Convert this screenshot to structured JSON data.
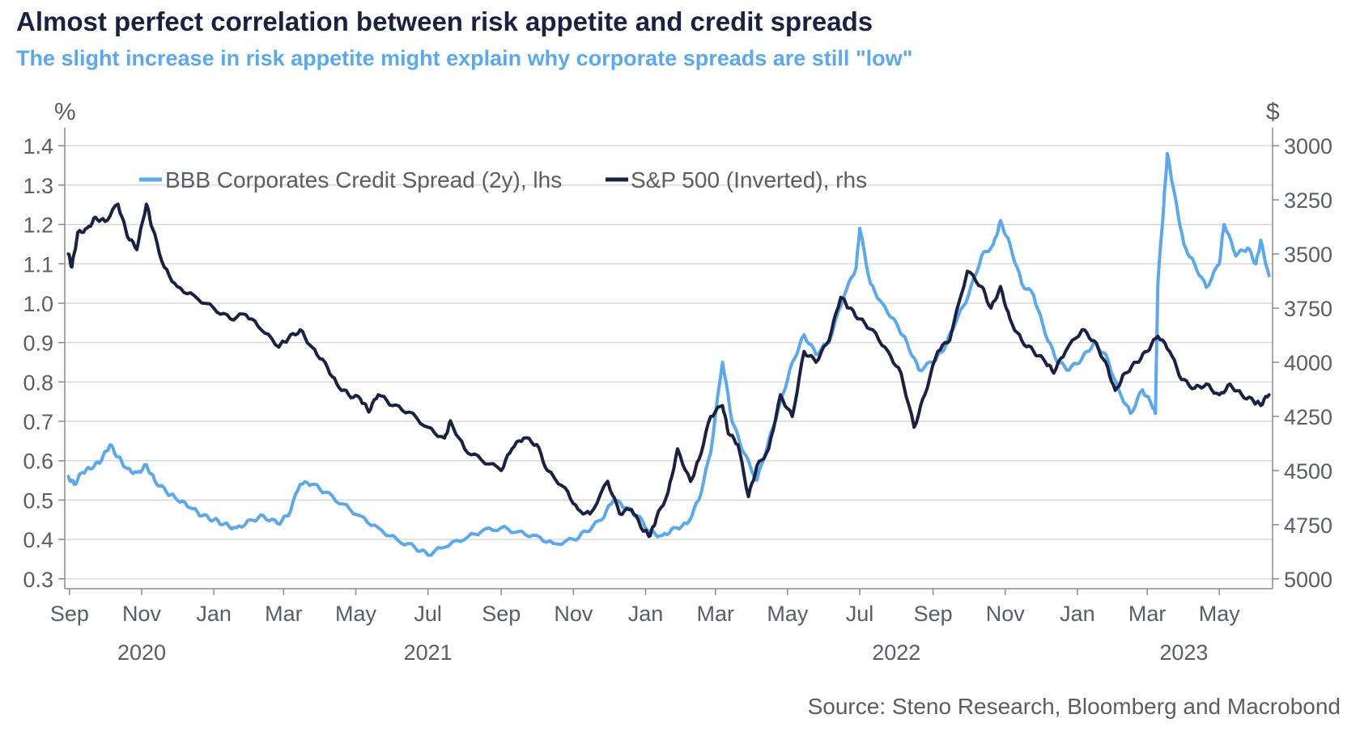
{
  "title": "Almost perfect correlation between risk appetite and credit spreads",
  "subtitle": "The slight increase in risk appetite might explain why corporate spreads are still \"low\"",
  "source": "Source: Steno Research, Bloomberg and Macrobond",
  "colors": {
    "spread": "#5aa9ee",
    "spx": "#1b2140",
    "grid": "#d9d9d9",
    "axis": "#8c8c8c",
    "text": "#595d66"
  },
  "chart_data": {
    "type": "line",
    "title": "Almost perfect correlation between risk appetite and credit spreads",
    "subtitle": "The slight increase in risk appetite might explain why corporate spreads are still \"low\"",
    "x_axis": {
      "type": "date",
      "range": [
        "2020-08-28",
        "2023-06-15"
      ],
      "month_ticks": [
        {
          "date": "2020-09-01",
          "label": "Sep"
        },
        {
          "date": "2020-11-01",
          "label": "Nov"
        },
        {
          "date": "2021-01-01",
          "label": "Jan"
        },
        {
          "date": "2021-03-01",
          "label": "Mar"
        },
        {
          "date": "2021-05-01",
          "label": "May"
        },
        {
          "date": "2021-07-01",
          "label": "Jul"
        },
        {
          "date": "2021-09-01",
          "label": "Sep"
        },
        {
          "date": "2021-11-01",
          "label": "Nov"
        },
        {
          "date": "2022-01-01",
          "label": "Jan"
        },
        {
          "date": "2022-03-01",
          "label": "Mar"
        },
        {
          "date": "2022-05-01",
          "label": "May"
        },
        {
          "date": "2022-07-01",
          "label": "Jul"
        },
        {
          "date": "2022-09-01",
          "label": "Sep"
        },
        {
          "date": "2022-11-01",
          "label": "Nov"
        },
        {
          "date": "2023-01-01",
          "label": "Jan"
        },
        {
          "date": "2023-03-01",
          "label": "Mar"
        },
        {
          "date": "2023-05-01",
          "label": "May"
        }
      ],
      "year_labels": [
        {
          "date": "2020-11-01",
          "label": "2020"
        },
        {
          "date": "2021-07-01",
          "label": "2021"
        },
        {
          "date": "2022-08-01",
          "label": "2022"
        },
        {
          "date": "2023-04-01",
          "label": "2023"
        }
      ]
    },
    "y_left": {
      "unit": "%",
      "range": [
        0.275,
        1.425
      ],
      "ticks": [
        0.3,
        0.4,
        0.5,
        0.6,
        0.7,
        0.8,
        0.9,
        1.0,
        1.1,
        1.2,
        1.3,
        1.4
      ],
      "tick_labels": [
        "0.3",
        "0.4",
        "0.5",
        "0.6",
        "0.7",
        "0.8",
        "0.9",
        "1.0",
        "1.1",
        "1.2",
        "1.3",
        "1.4"
      ]
    },
    "y_right": {
      "unit": "$",
      "inverted": true,
      "range": [
        3000,
        5000
      ],
      "ticks": [
        3000,
        3250,
        3500,
        3750,
        4000,
        4250,
        4500,
        4750,
        5000
      ]
    },
    "grid": true,
    "legend_position": "top-left",
    "series": [
      {
        "name": "BBB Corporates Credit Spread (2y), lhs",
        "axis": "left",
        "color": "#5aa9ee",
        "points": [
          [
            "2020-08-31",
            0.56
          ],
          [
            "2020-09-05",
            0.54
          ],
          [
            "2020-09-12",
            0.57
          ],
          [
            "2020-09-20",
            0.58
          ],
          [
            "2020-09-28",
            0.6
          ],
          [
            "2020-10-05",
            0.64
          ],
          [
            "2020-10-12",
            0.61
          ],
          [
            "2020-10-20",
            0.58
          ],
          [
            "2020-10-28",
            0.57
          ],
          [
            "2020-11-05",
            0.59
          ],
          [
            "2020-11-12",
            0.55
          ],
          [
            "2020-11-22",
            0.52
          ],
          [
            "2020-12-01",
            0.5
          ],
          [
            "2020-12-12",
            0.48
          ],
          [
            "2020-12-22",
            0.46
          ],
          [
            "2021-01-01",
            0.45
          ],
          [
            "2021-01-10",
            0.44
          ],
          [
            "2021-01-20",
            0.43
          ],
          [
            "2021-02-01",
            0.45
          ],
          [
            "2021-02-12",
            0.46
          ],
          [
            "2021-02-24",
            0.44
          ],
          [
            "2021-03-05",
            0.46
          ],
          [
            "2021-03-15",
            0.54
          ],
          [
            "2021-03-25",
            0.54
          ],
          [
            "2021-04-05",
            0.52
          ],
          [
            "2021-04-20",
            0.49
          ],
          [
            "2021-05-05",
            0.46
          ],
          [
            "2021-05-20",
            0.43
          ],
          [
            "2021-06-05",
            0.4
          ],
          [
            "2021-06-20",
            0.38
          ],
          [
            "2021-07-01",
            0.36
          ],
          [
            "2021-07-15",
            0.38
          ],
          [
            "2021-08-01",
            0.4
          ],
          [
            "2021-08-15",
            0.42
          ],
          [
            "2021-09-01",
            0.43
          ],
          [
            "2021-09-15",
            0.42
          ],
          [
            "2021-10-01",
            0.41
          ],
          [
            "2021-10-15",
            0.39
          ],
          [
            "2021-11-01",
            0.4
          ],
          [
            "2021-11-12",
            0.42
          ],
          [
            "2021-11-25",
            0.45
          ],
          [
            "2021-12-05",
            0.5
          ],
          [
            "2021-12-15",
            0.48
          ],
          [
            "2021-12-25",
            0.46
          ],
          [
            "2022-01-05",
            0.42
          ],
          [
            "2022-01-15",
            0.41
          ],
          [
            "2022-01-25",
            0.43
          ],
          [
            "2022-02-05",
            0.44
          ],
          [
            "2022-02-15",
            0.5
          ],
          [
            "2022-02-25",
            0.62
          ],
          [
            "2022-03-07",
            0.85
          ],
          [
            "2022-03-15",
            0.7
          ],
          [
            "2022-03-25",
            0.62
          ],
          [
            "2022-04-05",
            0.55
          ],
          [
            "2022-04-15",
            0.65
          ],
          [
            "2022-04-25",
            0.75
          ],
          [
            "2022-05-05",
            0.85
          ],
          [
            "2022-05-15",
            0.92
          ],
          [
            "2022-05-25",
            0.87
          ],
          [
            "2022-06-05",
            0.9
          ],
          [
            "2022-06-18",
            1.02
          ],
          [
            "2022-06-28",
            1.09
          ],
          [
            "2022-07-01",
            1.19
          ],
          [
            "2022-07-10",
            1.05
          ],
          [
            "2022-07-20",
            1.0
          ],
          [
            "2022-08-01",
            0.95
          ],
          [
            "2022-08-10",
            0.9
          ],
          [
            "2022-08-20",
            0.83
          ],
          [
            "2022-09-01",
            0.85
          ],
          [
            "2022-09-10",
            0.88
          ],
          [
            "2022-09-20",
            0.95
          ],
          [
            "2022-10-01",
            1.02
          ],
          [
            "2022-10-12",
            1.12
          ],
          [
            "2022-10-22",
            1.15
          ],
          [
            "2022-10-28",
            1.21
          ],
          [
            "2022-11-05",
            1.15
          ],
          [
            "2022-11-15",
            1.05
          ],
          [
            "2022-11-25",
            1.02
          ],
          [
            "2022-12-05",
            0.92
          ],
          [
            "2022-12-15",
            0.85
          ],
          [
            "2022-12-25",
            0.83
          ],
          [
            "2023-01-05",
            0.86
          ],
          [
            "2023-01-15",
            0.9
          ],
          [
            "2023-01-25",
            0.87
          ],
          [
            "2023-02-05",
            0.78
          ],
          [
            "2023-02-15",
            0.72
          ],
          [
            "2023-02-25",
            0.78
          ],
          [
            "2023-03-05",
            0.74
          ],
          [
            "2023-03-08",
            0.72
          ],
          [
            "2023-03-10",
            1.05
          ],
          [
            "2023-03-15",
            1.25
          ],
          [
            "2023-03-18",
            1.38
          ],
          [
            "2023-03-24",
            1.28
          ],
          [
            "2023-04-01",
            1.15
          ],
          [
            "2023-04-10",
            1.1
          ],
          [
            "2023-04-20",
            1.04
          ],
          [
            "2023-05-01",
            1.1
          ],
          [
            "2023-05-05",
            1.2
          ],
          [
            "2023-05-15",
            1.12
          ],
          [
            "2023-05-25",
            1.14
          ],
          [
            "2023-06-01",
            1.1
          ],
          [
            "2023-06-05",
            1.16
          ],
          [
            "2023-06-12",
            1.07
          ]
        ]
      },
      {
        "name": "S&P 500 (Inverted), rhs",
        "axis": "right",
        "color": "#1b2140",
        "points": [
          [
            "2020-08-31",
            3500
          ],
          [
            "2020-09-03",
            3560
          ],
          [
            "2020-09-08",
            3400
          ],
          [
            "2020-09-16",
            3380
          ],
          [
            "2020-09-23",
            3330
          ],
          [
            "2020-10-01",
            3350
          ],
          [
            "2020-10-12",
            3270
          ],
          [
            "2020-10-20",
            3420
          ],
          [
            "2020-10-28",
            3480
          ],
          [
            "2020-11-05",
            3270
          ],
          [
            "2020-11-10",
            3380
          ],
          [
            "2020-11-20",
            3560
          ],
          [
            "2020-12-01",
            3650
          ],
          [
            "2020-12-15",
            3690
          ],
          [
            "2021-01-01",
            3750
          ],
          [
            "2021-01-15",
            3800
          ],
          [
            "2021-01-28",
            3780
          ],
          [
            "2021-02-10",
            3850
          ],
          [
            "2021-02-25",
            3930
          ],
          [
            "2021-03-05",
            3890
          ],
          [
            "2021-03-15",
            3850
          ],
          [
            "2021-03-25",
            3930
          ],
          [
            "2021-04-05",
            4000
          ],
          [
            "2021-04-15",
            4100
          ],
          [
            "2021-04-25",
            4150
          ],
          [
            "2021-05-05",
            4170
          ],
          [
            "2021-05-12",
            4230
          ],
          [
            "2021-05-20",
            4150
          ],
          [
            "2021-06-01",
            4200
          ],
          [
            "2021-06-15",
            4230
          ],
          [
            "2021-07-01",
            4300
          ],
          [
            "2021-07-15",
            4350
          ],
          [
            "2021-07-20",
            4270
          ],
          [
            "2021-08-01",
            4400
          ],
          [
            "2021-08-15",
            4450
          ],
          [
            "2021-09-01",
            4500
          ],
          [
            "2021-09-10",
            4400
          ],
          [
            "2021-09-20",
            4350
          ],
          [
            "2021-10-01",
            4380
          ],
          [
            "2021-10-10",
            4500
          ],
          [
            "2021-10-25",
            4580
          ],
          [
            "2021-11-05",
            4680
          ],
          [
            "2021-11-15",
            4700
          ],
          [
            "2021-11-30",
            4550
          ],
          [
            "2021-12-10",
            4700
          ],
          [
            "2021-12-20",
            4680
          ],
          [
            "2021-12-30",
            4780
          ],
          [
            "2022-01-05",
            4800
          ],
          [
            "2022-01-10",
            4720
          ],
          [
            "2022-01-20",
            4600
          ],
          [
            "2022-01-28",
            4400
          ],
          [
            "2022-02-08",
            4550
          ],
          [
            "2022-02-15",
            4450
          ],
          [
            "2022-02-25",
            4250
          ],
          [
            "2022-03-07",
            4200
          ],
          [
            "2022-03-12",
            4330
          ],
          [
            "2022-03-20",
            4380
          ],
          [
            "2022-03-29",
            4620
          ],
          [
            "2022-04-05",
            4480
          ],
          [
            "2022-04-15",
            4400
          ],
          [
            "2022-04-25",
            4150
          ],
          [
            "2022-05-05",
            4250
          ],
          [
            "2022-05-15",
            3950
          ],
          [
            "2022-05-25",
            4000
          ],
          [
            "2022-06-05",
            3900
          ],
          [
            "2022-06-15",
            3700
          ],
          [
            "2022-06-22",
            3750
          ],
          [
            "2022-07-01",
            3800
          ],
          [
            "2022-07-12",
            3850
          ],
          [
            "2022-07-25",
            3950
          ],
          [
            "2022-08-05",
            4050
          ],
          [
            "2022-08-16",
            4300
          ],
          [
            "2022-08-25",
            4150
          ],
          [
            "2022-09-05",
            3950
          ],
          [
            "2022-09-15",
            3900
          ],
          [
            "2022-09-30",
            3580
          ],
          [
            "2022-10-12",
            3650
          ],
          [
            "2022-10-20",
            3750
          ],
          [
            "2022-10-28",
            3650
          ],
          [
            "2022-11-05",
            3800
          ],
          [
            "2022-11-15",
            3900
          ],
          [
            "2022-11-25",
            3950
          ],
          [
            "2022-12-05",
            4000
          ],
          [
            "2022-12-12",
            4050
          ],
          [
            "2022-12-22",
            3950
          ],
          [
            "2023-01-05",
            3850
          ],
          [
            "2023-01-15",
            3900
          ],
          [
            "2023-01-25",
            4000
          ],
          [
            "2023-02-02",
            4130
          ],
          [
            "2023-02-10",
            4050
          ],
          [
            "2023-02-20",
            4000
          ],
          [
            "2023-03-01",
            3950
          ],
          [
            "2023-03-10",
            3880
          ],
          [
            "2023-03-20",
            3950
          ],
          [
            "2023-03-30",
            4080
          ],
          [
            "2023-04-10",
            4120
          ],
          [
            "2023-04-20",
            4100
          ],
          [
            "2023-05-01",
            4150
          ],
          [
            "2023-05-10",
            4100
          ],
          [
            "2023-05-20",
            4150
          ],
          [
            "2023-05-30",
            4180
          ],
          [
            "2023-06-05",
            4200
          ],
          [
            "2023-06-12",
            4150
          ]
        ]
      }
    ]
  }
}
